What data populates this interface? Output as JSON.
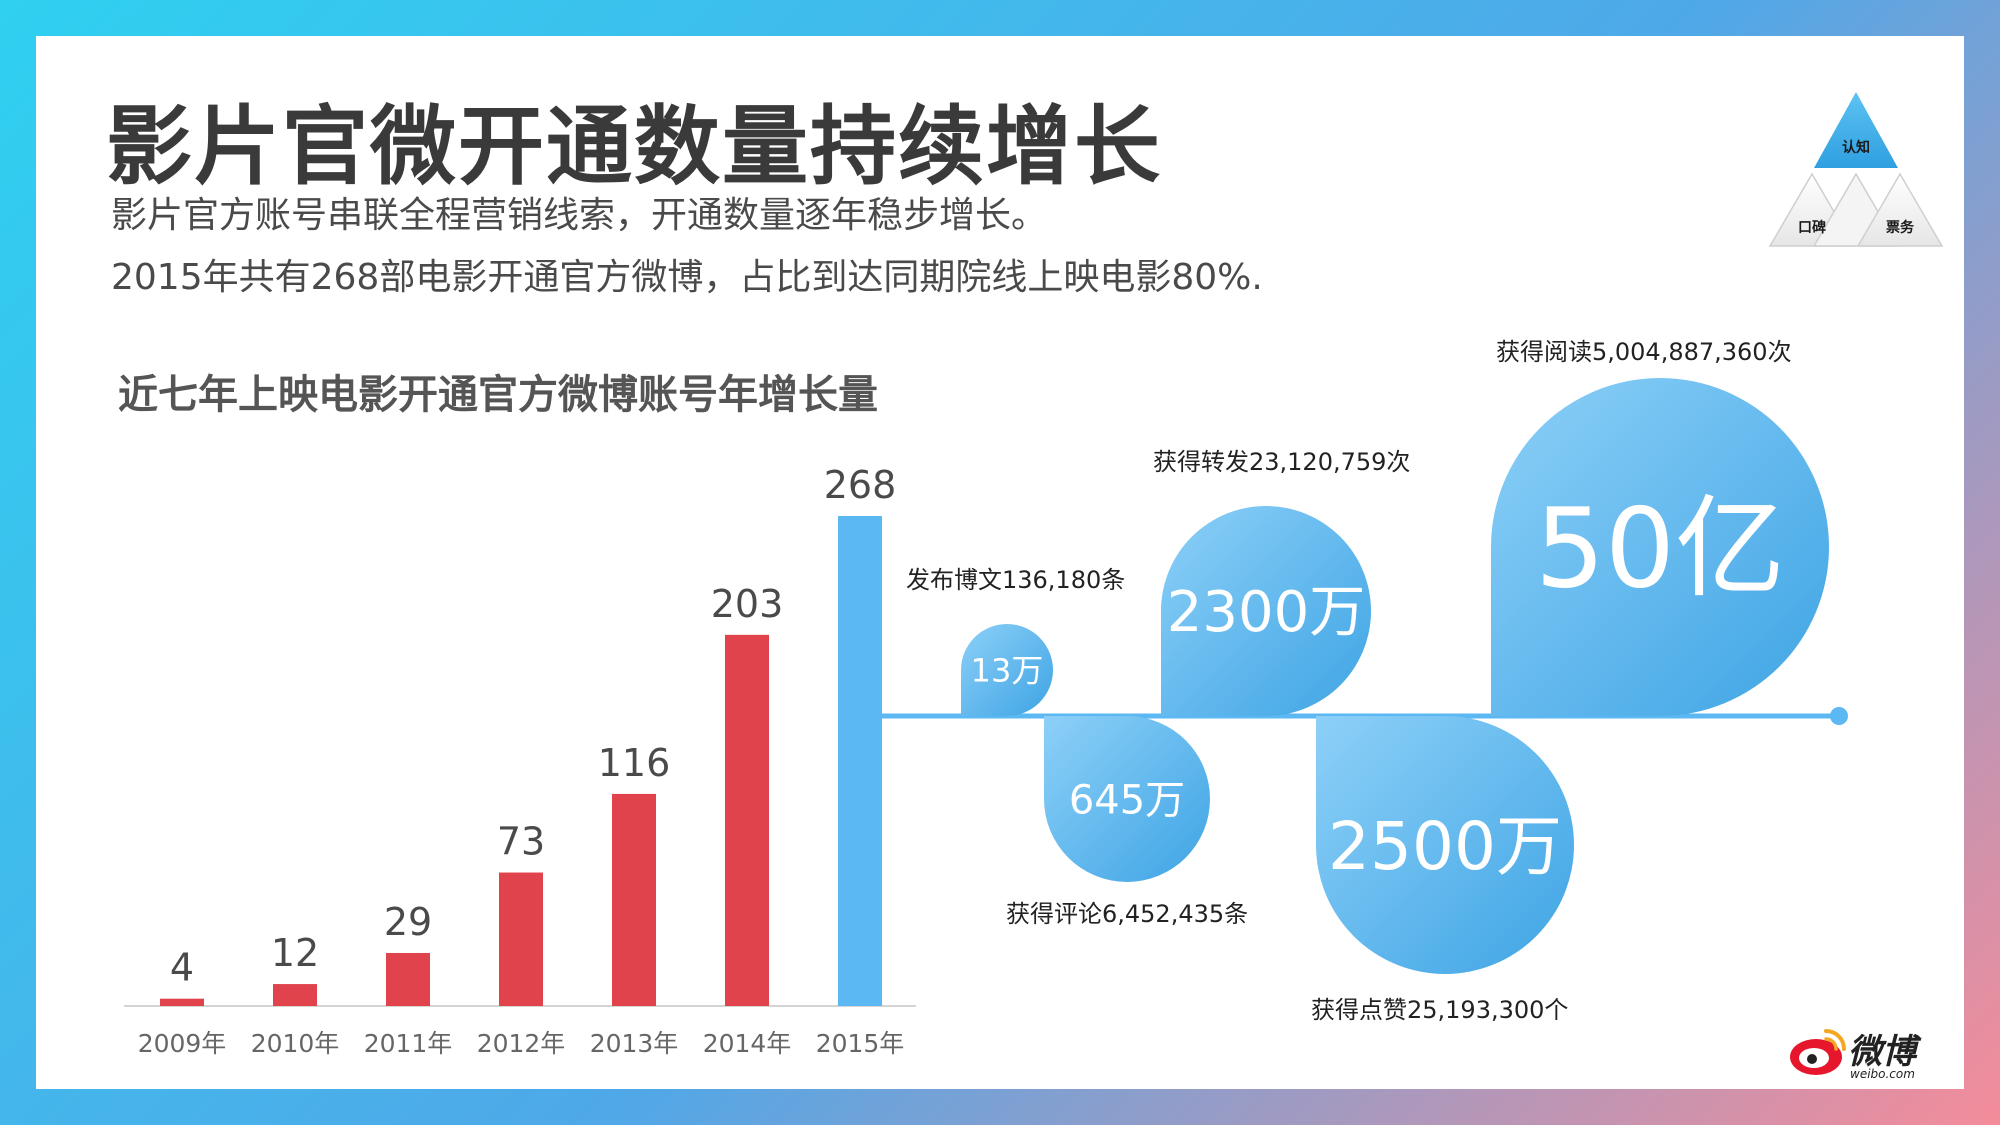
{
  "title": "影片官微开通数量持续增长",
  "subtitle_lines": [
    "影片官方账号串联全程营销线索，开通数量逐年稳步增长。",
    "2015年共有268部电影开通官方微博，占比到达同期院线上映电影80%."
  ],
  "chart_data": {
    "type": "bar",
    "title": "近七年上映电影开通官方微博账号年增长量",
    "categories": [
      "2009年",
      "2010年",
      "2011年",
      "2012年",
      "2013年",
      "2014年",
      "2015年"
    ],
    "values": [
      4,
      12,
      29,
      73,
      116,
      203,
      268
    ],
    "highlight_index": 6,
    "colors": {
      "bar": "#e0434c",
      "highlight": "#5cb8f2"
    }
  },
  "metrics": {
    "top": [
      {
        "value": "13万",
        "label": "发布博文136,180条"
      },
      {
        "value": "2300万",
        "label": "获得转发23,120,759次"
      },
      {
        "value": "50亿",
        "label": "获得阅读5,004,887,360次"
      }
    ],
    "bottom": [
      {
        "value": "645万",
        "label": "获得评论6,452,435条"
      },
      {
        "value": "2500万",
        "label": "获得点赞25,193,300个"
      }
    ],
    "colors": {
      "drop_light": "#8dd0f8",
      "drop_dark": "#3ea4e4",
      "line": "#5cb8f2"
    }
  },
  "pyramid": {
    "top": "认知",
    "left": "口碑",
    "right": "票务"
  },
  "logo": {
    "text": "微博",
    "url_text": "weibo.com"
  }
}
